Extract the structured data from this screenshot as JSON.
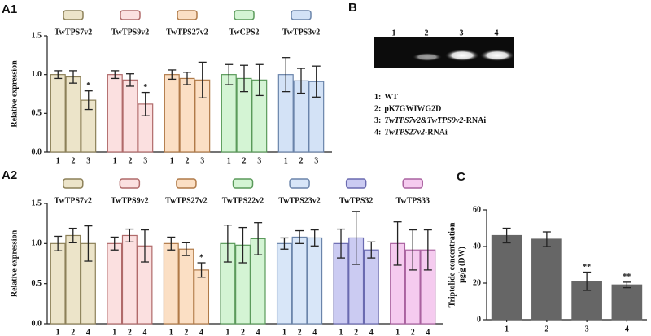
{
  "chart_data": [
    {
      "type": "bar",
      "panel": "A1",
      "ylabel": "Relative expression",
      "ylim": [
        0,
        1.5
      ],
      "yticks": [
        {
          "value": 0,
          "label": "0.0"
        },
        0.5,
        {
          "value": 1,
          "label": "1.0"
        },
        1.5
      ],
      "groups": [
        {
          "name": "TwTPS7v2",
          "color": "#ece4c9",
          "edgecolor": "#8c8058",
          "categories": [
            "1",
            "2",
            "3"
          ],
          "values": [
            1.0,
            0.97,
            0.67
          ],
          "errors": [
            0.05,
            0.08,
            0.12
          ],
          "annotations": [
            null,
            null,
            "*"
          ]
        },
        {
          "name": "TwTPS9v2",
          "color": "#fbe0e0",
          "edgecolor": "#b06a6a",
          "categories": [
            "1",
            "2",
            "3"
          ],
          "values": [
            1.0,
            0.93,
            0.62
          ],
          "errors": [
            0.05,
            0.08,
            0.15
          ],
          "annotations": [
            null,
            null,
            "*"
          ]
        },
        {
          "name": "TwTPS27v2",
          "color": "#fbdfc4",
          "edgecolor": "#b07a48",
          "categories": [
            "1",
            "2",
            "3"
          ],
          "values": [
            1.0,
            0.95,
            0.93
          ],
          "errors": [
            0.06,
            0.08,
            0.23
          ],
          "annotations": [
            null,
            null,
            null
          ]
        },
        {
          "name": "TwCPS2",
          "color": "#d4f4d4",
          "edgecolor": "#5a9a5a",
          "categories": [
            "1",
            "2",
            "3"
          ],
          "values": [
            1.0,
            0.95,
            0.93
          ],
          "errors": [
            0.13,
            0.17,
            0.2
          ],
          "annotations": [
            null,
            null,
            null
          ]
        },
        {
          "name": "TwTPS3v2",
          "color": "#d3e2f6",
          "edgecolor": "#6a84aa",
          "categories": [
            "1",
            "2",
            "3"
          ],
          "values": [
            1.0,
            0.92,
            0.91
          ],
          "errors": [
            0.22,
            0.16,
            0.2
          ],
          "annotations": [
            null,
            null,
            null
          ]
        }
      ]
    },
    {
      "type": "bar",
      "panel": "A2",
      "ylabel": "Relative expression",
      "ylim": [
        0,
        1.5
      ],
      "yticks": [
        {
          "value": 0,
          "label": "0.0"
        },
        0.5,
        {
          "value": 1,
          "label": "1.0"
        },
        1.5
      ],
      "groups": [
        {
          "name": "TwTPS7v2",
          "color": "#ece4c9",
          "edgecolor": "#8c8058",
          "categories": [
            "1",
            "2",
            "4"
          ],
          "values": [
            1.0,
            1.1,
            1.0
          ],
          "errors": [
            0.09,
            0.09,
            0.22
          ],
          "annotations": [
            null,
            null,
            null
          ]
        },
        {
          "name": "TwTPS9v2",
          "color": "#fbe0e0",
          "edgecolor": "#b06a6a",
          "categories": [
            "1",
            "2",
            "4"
          ],
          "values": [
            1.0,
            1.1,
            0.97
          ],
          "errors": [
            0.08,
            0.08,
            0.2
          ],
          "annotations": [
            null,
            null,
            null
          ]
        },
        {
          "name": "TwTPS27v2",
          "color": "#fbdfc4",
          "edgecolor": "#b07a48",
          "categories": [
            "1",
            "2",
            "4"
          ],
          "values": [
            1.0,
            0.93,
            0.67
          ],
          "errors": [
            0.08,
            0.08,
            0.09
          ],
          "annotations": [
            null,
            null,
            "*"
          ]
        },
        {
          "name": "TwTPS22v2",
          "color": "#d4f4d4",
          "edgecolor": "#5a9a5a",
          "categories": [
            "1",
            "2",
            "4"
          ],
          "values": [
            1.0,
            0.98,
            1.06
          ],
          "errors": [
            0.23,
            0.22,
            0.2
          ],
          "annotations": [
            null,
            null,
            null
          ]
        },
        {
          "name": "TwTPS23v2",
          "color": "#d8e6f8",
          "edgecolor": "#6a84aa",
          "categories": [
            "1",
            "2",
            "4"
          ],
          "values": [
            1.0,
            1.08,
            1.07
          ],
          "errors": [
            0.07,
            0.08,
            0.1
          ],
          "annotations": [
            null,
            null,
            null
          ]
        },
        {
          "name": "TwTPS32",
          "color": "#cbcbf2",
          "edgecolor": "#6a6ab0",
          "categories": [
            "1",
            "2",
            "4"
          ],
          "values": [
            1.0,
            1.07,
            0.92
          ],
          "errors": [
            0.18,
            0.33,
            0.1
          ],
          "annotations": [
            null,
            null,
            null
          ]
        },
        {
          "name": "TwTPS33",
          "color": "#f5cbef",
          "edgecolor": "#aa62a0",
          "categories": [
            "1",
            "2",
            "4"
          ],
          "values": [
            1.0,
            0.92,
            0.92
          ],
          "errors": [
            0.27,
            0.25,
            0.25
          ],
          "annotations": [
            null,
            null,
            null
          ]
        }
      ]
    },
    {
      "type": "bar",
      "panel": "C",
      "ylabel": [
        "Triptolide concentration",
        "μg/g (DW)"
      ],
      "ylim": [
        0,
        60
      ],
      "yticks": [
        0,
        20,
        40,
        60
      ],
      "color": "#666666",
      "categories": [
        "1",
        "2",
        "3",
        "4"
      ],
      "values": [
        46,
        44,
        21,
        19
      ],
      "errors": [
        4,
        4,
        5,
        1.5
      ],
      "annotations": [
        null,
        null,
        "**",
        "**"
      ]
    }
  ],
  "gel": {
    "panel": "B",
    "lanes": [
      "1",
      "2",
      "3",
      "4"
    ],
    "legend": [
      {
        "number": "1:",
        "text": "WT"
      },
      {
        "number": "2:",
        "text": "pK7GWIWG2D"
      },
      {
        "number": "3:",
        "text": "TwTPS7v2&TwTPS9v2",
        "suffix": "-RNAi"
      },
      {
        "number": "4:",
        "text": "TwTPS27v2",
        "suffix": "-RNAi"
      }
    ]
  }
}
